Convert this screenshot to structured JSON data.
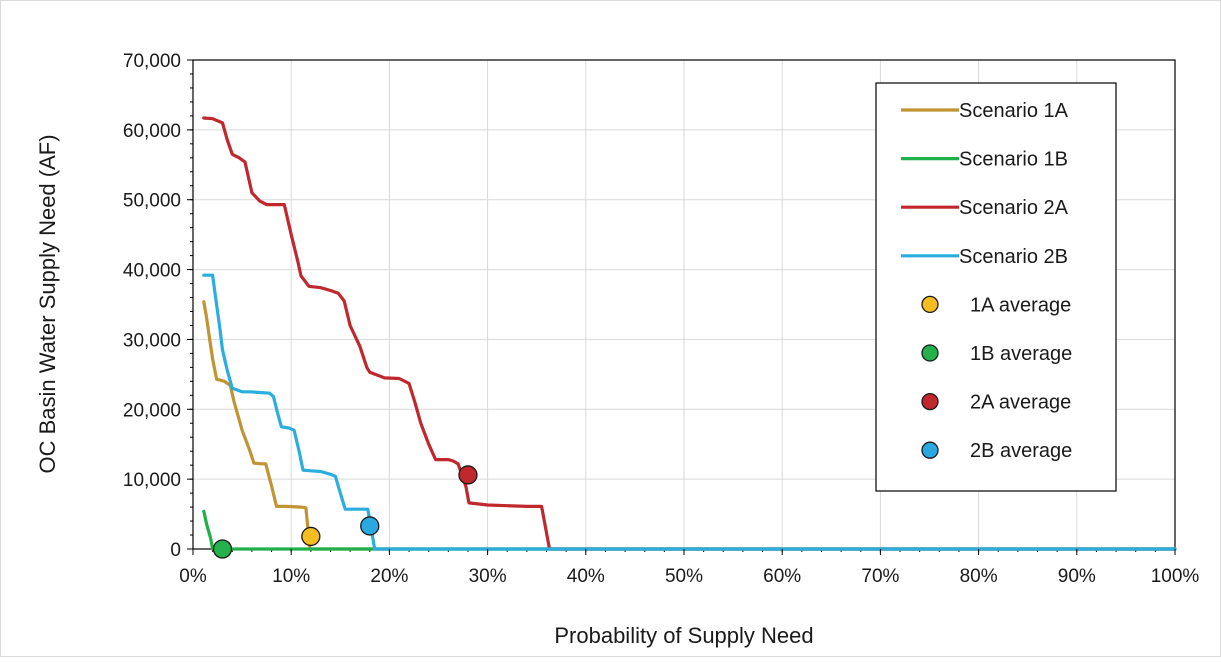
{
  "chart_data": {
    "type": "line",
    "title": "",
    "xlabel": "Probability of Supply Need",
    "ylabel": "OC Basin Water Supply Need (AF)",
    "xlim": [
      0,
      1
    ],
    "ylim": [
      0,
      70000
    ],
    "x_ticks": [
      0,
      0.1,
      0.2,
      0.3,
      0.4,
      0.5,
      0.6,
      0.7,
      0.8,
      0.9,
      1.0
    ],
    "x_tick_labels": [
      "0%",
      "10%",
      "20%",
      "30%",
      "40%",
      "50%",
      "60%",
      "70%",
      "80%",
      "90%",
      "100%"
    ],
    "y_ticks": [
      0,
      10000,
      20000,
      30000,
      40000,
      50000,
      60000,
      70000
    ],
    "y_tick_labels": [
      "0",
      "10,000",
      "20,000",
      "30,000",
      "40,000",
      "50,000",
      "60,000",
      "70,000"
    ],
    "grid": true,
    "legend_position": "top-right",
    "series": [
      {
        "name": "Scenario 1A",
        "kind": "line",
        "color": "#c09433",
        "points": [
          [
            0.011,
            35400
          ],
          [
            0.014,
            33000
          ],
          [
            0.017,
            30000
          ],
          [
            0.02,
            27200
          ],
          [
            0.024,
            24300
          ],
          [
            0.032,
            24000
          ],
          [
            0.038,
            23400
          ],
          [
            0.042,
            21000
          ],
          [
            0.05,
            17000
          ],
          [
            0.058,
            14000
          ],
          [
            0.062,
            12300
          ],
          [
            0.07,
            12200
          ],
          [
            0.074,
            12200
          ],
          [
            0.08,
            9000
          ],
          [
            0.085,
            6100
          ],
          [
            0.095,
            6100
          ],
          [
            0.11,
            6000
          ],
          [
            0.115,
            5900
          ],
          [
            0.119,
            0
          ],
          [
            1.0,
            0
          ]
        ]
      },
      {
        "name": "Scenario 1B",
        "kind": "line",
        "color": "#1fb04a",
        "points": [
          [
            0.011,
            5400
          ],
          [
            0.014,
            3500
          ],
          [
            0.018,
            1500
          ],
          [
            0.02,
            0
          ],
          [
            1.0,
            0
          ]
        ]
      },
      {
        "name": "Scenario 2A",
        "kind": "line",
        "color": "#c0282d",
        "points": [
          [
            0.011,
            61700
          ],
          [
            0.02,
            61600
          ],
          [
            0.03,
            61000
          ],
          [
            0.035,
            58500
          ],
          [
            0.04,
            56500
          ],
          [
            0.047,
            56000
          ],
          [
            0.053,
            55400
          ],
          [
            0.06,
            51000
          ],
          [
            0.068,
            49800
          ],
          [
            0.075,
            49300
          ],
          [
            0.09,
            49300
          ],
          [
            0.093,
            49300
          ],
          [
            0.1,
            45000
          ],
          [
            0.107,
            41000
          ],
          [
            0.11,
            39100
          ],
          [
            0.118,
            37600
          ],
          [
            0.13,
            37400
          ],
          [
            0.14,
            37000
          ],
          [
            0.148,
            36600
          ],
          [
            0.154,
            35500
          ],
          [
            0.16,
            32000
          ],
          [
            0.17,
            29000
          ],
          [
            0.177,
            26000
          ],
          [
            0.18,
            25300
          ],
          [
            0.195,
            24500
          ],
          [
            0.21,
            24400
          ],
          [
            0.22,
            23700
          ],
          [
            0.226,
            21000
          ],
          [
            0.232,
            18000
          ],
          [
            0.24,
            15000
          ],
          [
            0.247,
            12800
          ],
          [
            0.26,
            12800
          ],
          [
            0.265,
            12600
          ],
          [
            0.27,
            12200
          ],
          [
            0.278,
            8900
          ],
          [
            0.281,
            6600
          ],
          [
            0.3,
            6300
          ],
          [
            0.32,
            6200
          ],
          [
            0.34,
            6100
          ],
          [
            0.355,
            6100
          ],
          [
            0.363,
            0
          ],
          [
            1.0,
            0
          ]
        ]
      },
      {
        "name": "Scenario 2B",
        "kind": "line",
        "color": "#2aaee0",
        "points": [
          [
            0.011,
            39200
          ],
          [
            0.02,
            39200
          ],
          [
            0.023,
            36000
          ],
          [
            0.027,
            32000
          ],
          [
            0.03,
            28500
          ],
          [
            0.035,
            25500
          ],
          [
            0.04,
            23000
          ],
          [
            0.05,
            22500
          ],
          [
            0.058,
            22500
          ],
          [
            0.068,
            22400
          ],
          [
            0.078,
            22300
          ],
          [
            0.082,
            21800
          ],
          [
            0.086,
            19500
          ],
          [
            0.09,
            17500
          ],
          [
            0.098,
            17300
          ],
          [
            0.103,
            17000
          ],
          [
            0.108,
            14000
          ],
          [
            0.112,
            11300
          ],
          [
            0.12,
            11200
          ],
          [
            0.13,
            11100
          ],
          [
            0.14,
            10700
          ],
          [
            0.145,
            10400
          ],
          [
            0.15,
            8000
          ],
          [
            0.155,
            5700
          ],
          [
            0.17,
            5700
          ],
          [
            0.178,
            5700
          ],
          [
            0.185,
            0
          ],
          [
            1.0,
            0
          ]
        ]
      },
      {
        "name": "1A average",
        "kind": "marker",
        "color": "#f5be1e",
        "points": [
          [
            0.12,
            1800
          ]
        ]
      },
      {
        "name": "1B average",
        "kind": "marker",
        "color": "#24b04b",
        "points": [
          [
            0.03,
            0
          ]
        ]
      },
      {
        "name": "2A average",
        "kind": "marker",
        "color": "#c0282d",
        "points": [
          [
            0.28,
            10600
          ]
        ]
      },
      {
        "name": "2B average",
        "kind": "marker",
        "color": "#2aa9e0",
        "points": [
          [
            0.18,
            3300
          ]
        ]
      }
    ]
  }
}
